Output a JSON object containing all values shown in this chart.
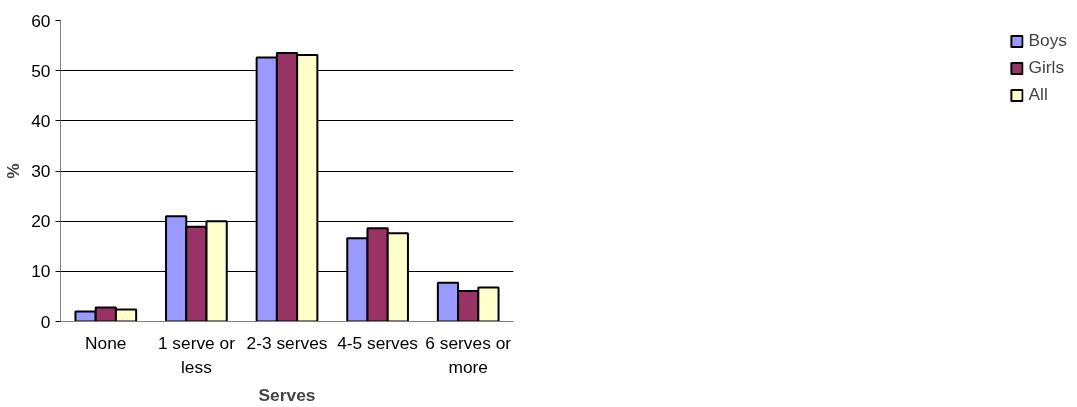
{
  "chart_data": {
    "type": "bar",
    "xlabel": "Serves",
    "ylabel": "%",
    "categories": [
      "None",
      "1 serve or less",
      "2-3 serves",
      "4-5 serves",
      "6 serves or more"
    ],
    "series": [
      {
        "name": "Boys",
        "color": "#9999ff",
        "values": [
          2.0,
          21.0,
          52.6,
          16.6,
          7.7
        ]
      },
      {
        "name": "Girls",
        "color": "#993366",
        "values": [
          2.8,
          18.9,
          53.5,
          18.6,
          6.1
        ]
      },
      {
        "name": "All",
        "color": "#ffffcc",
        "values": [
          2.4,
          20.0,
          53.1,
          17.6,
          6.8
        ]
      }
    ],
    "ylim": [
      0,
      60
    ],
    "yticks": [
      0,
      10,
      20,
      30,
      40,
      50,
      60
    ],
    "grid": "y",
    "legend": "right"
  }
}
